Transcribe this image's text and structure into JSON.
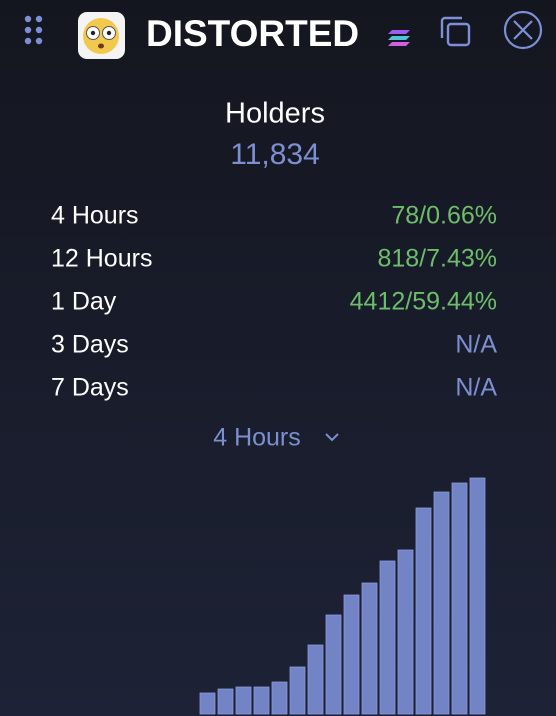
{
  "header": {
    "title": "DISTORTED"
  },
  "holders": {
    "label": "Holders",
    "value": "11,834"
  },
  "table": {
    "rows": [
      {
        "label": "4 Hours",
        "value": "78/0.66%",
        "trend": "up"
      },
      {
        "label": "12 Hours",
        "value": "818/7.43%",
        "trend": "up"
      },
      {
        "label": "1 Day",
        "value": "4412/59.44%",
        "trend": "up"
      },
      {
        "label": "3 Days",
        "value": "N/A",
        "trend": "none"
      },
      {
        "label": "7 Days",
        "value": "N/A",
        "trend": "none"
      }
    ]
  },
  "selector": {
    "label": "4 Hours"
  },
  "chart": {
    "type": "bar",
    "color": "#7283c6",
    "values": [
      21,
      25,
      27,
      27,
      32,
      47,
      69,
      99,
      119,
      131,
      153,
      164,
      206,
      222,
      231,
      236
    ]
  }
}
